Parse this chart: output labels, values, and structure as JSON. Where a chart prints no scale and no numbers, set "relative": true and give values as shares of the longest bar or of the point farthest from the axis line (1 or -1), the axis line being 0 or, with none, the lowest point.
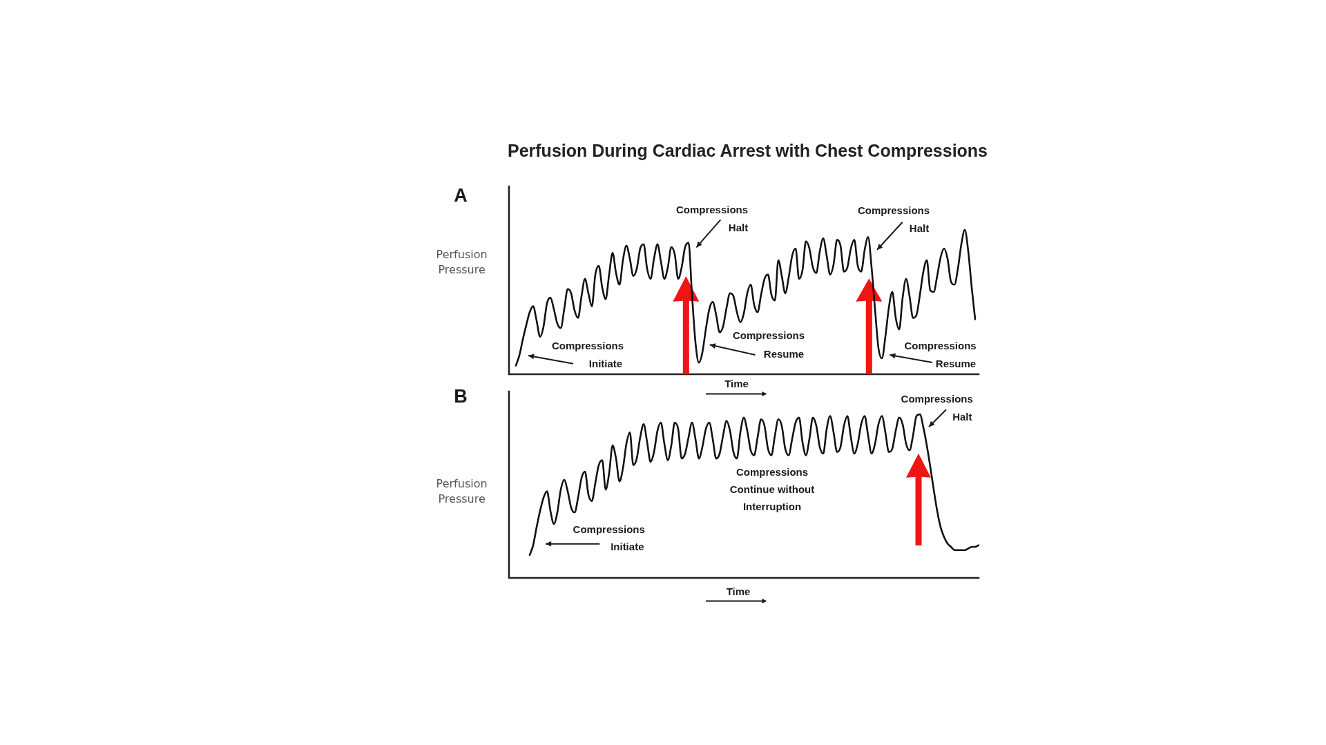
{
  "chart_data": [
    {
      "type": "line",
      "title": "Perfusion During Cardiac Arrest with Chest Compressions",
      "subtitle": "A",
      "ylabel": "Perfusion Pressure",
      "xlabel": "Time",
      "relative": true,
      "tick_labels": false,
      "color": "#111111",
      "categories": [
        null,
        null,
        null,
        null,
        null,
        null,
        null,
        null,
        null,
        null,
        null,
        null,
        null,
        null,
        null,
        null,
        null,
        null,
        null,
        null,
        null,
        null,
        null,
        null,
        null,
        null,
        null,
        null,
        null,
        null,
        null,
        null,
        null,
        null,
        null,
        null,
        null,
        null,
        null,
        null,
        null,
        null,
        null,
        null,
        null,
        null,
        null,
        null,
        null,
        null,
        null,
        null,
        null,
        null,
        null,
        null,
        null,
        null,
        null,
        null,
        null,
        null,
        null,
        null,
        null,
        null,
        null,
        null,
        null,
        null,
        null,
        null,
        null,
        null,
        null,
        null,
        null,
        null,
        null,
        null,
        null,
        null,
        null,
        null,
        null,
        null,
        null,
        null,
        null,
        null,
        null,
        null,
        null,
        null,
        null,
        null,
        null,
        null,
        null,
        null,
        null,
        null,
        null,
        null,
        null,
        null,
        null,
        null,
        null,
        null,
        null,
        null,
        null,
        null,
        null,
        null,
        null,
        null,
        null,
        null,
        null,
        null,
        null,
        null,
        null,
        null,
        null,
        null,
        null,
        null,
        null,
        null,
        null,
        null,
        null,
        null,
        null
      ],
      "values": [
        null,
        null,
        0.06,
        0.13,
        0.24,
        0.34,
        0.43,
        0.47,
        0.37,
        0.26,
        0.33,
        0.49,
        0.53,
        0.45,
        0.35,
        0.32,
        0.45,
        0.59,
        0.56,
        0.44,
        0.39,
        0.54,
        0.66,
        0.56,
        0.47,
        0.69,
        0.75,
        0.6,
        0.52,
        0.69,
        0.84,
        0.7,
        0.62,
        0.79,
        0.89,
        0.8,
        0.68,
        0.73,
        0.87,
        0.9,
        0.73,
        0.66,
        0.8,
        0.9,
        0.78,
        0.66,
        0.74,
        0.88,
        0.83,
        0.66,
        0.74,
        0.88,
        0.91,
        0.55,
        0.22,
        0.08,
        0.15,
        0.31,
        0.45,
        0.5,
        0.41,
        0.29,
        0.33,
        0.46,
        0.56,
        0.54,
        0.43,
        0.36,
        0.42,
        0.56,
        0.62,
        0.48,
        0.43,
        0.55,
        0.66,
        0.69,
        0.55,
        0.51,
        0.79,
        0.68,
        0.56,
        0.67,
        0.82,
        0.87,
        0.66,
        0.72,
        0.92,
        0.87,
        0.74,
        0.7,
        0.85,
        0.94,
        0.82,
        0.69,
        0.76,
        0.93,
        0.89,
        0.71,
        0.74,
        0.87,
        0.93,
        0.75,
        0.71,
        0.86,
        0.95,
        0.74,
        0.45,
        0.18,
        0.11,
        0.26,
        0.46,
        0.57,
        0.39,
        0.31,
        0.53,
        0.66,
        0.54,
        0.39,
        0.41,
        0.55,
        0.71,
        0.79,
        0.58,
        0.57,
        0.68,
        0.81,
        0.87,
        0.8,
        0.64,
        0.62,
        0.73,
        0.9,
        1,
        0.85,
        0.6,
        0.38,
        null
      ],
      "annotations": [
        "Compressions Initiate",
        "Compressions Halt",
        "Compressions Resume",
        "Compressions Halt",
        "Compressions Resume"
      ]
    },
    {
      "type": "line",
      "subtitle": "B",
      "ylabel": "Perfusion Pressure",
      "xlabel": "Time",
      "relative": true,
      "tick_labels": false,
      "color": "#111111",
      "categories": [
        null,
        null,
        null,
        null,
        null,
        null,
        null,
        null,
        null,
        null,
        null,
        null,
        null,
        null,
        null,
        null,
        null,
        null,
        null,
        null,
        null,
        null,
        null,
        null,
        null,
        null,
        null,
        null,
        null,
        null,
        null,
        null,
        null,
        null,
        null,
        null,
        null,
        null,
        null,
        null,
        null,
        null,
        null,
        null,
        null,
        null,
        null,
        null,
        null,
        null,
        null,
        null,
        null,
        null,
        null,
        null,
        null,
        null,
        null,
        null,
        null,
        null,
        null,
        null,
        null,
        null,
        null,
        null,
        null,
        null,
        null,
        null,
        null,
        null,
        null,
        null,
        null,
        null,
        null,
        null,
        null,
        null,
        null,
        null,
        null,
        null,
        null,
        null,
        null,
        null,
        null,
        null,
        null,
        null,
        null,
        null,
        null,
        null,
        null,
        null,
        null,
        null,
        null,
        null,
        null,
        null,
        null,
        null,
        null,
        null,
        null,
        null,
        null,
        null,
        null,
        null,
        null,
        null,
        null,
        null,
        null,
        null,
        null,
        null,
        null,
        null,
        null,
        null,
        null,
        null,
        null,
        null,
        null,
        null,
        null,
        null,
        null
      ],
      "values": [
        null,
        null,
        null,
        null,
        null,
        null,
        0.14,
        0.2,
        0.31,
        0.41,
        0.49,
        0.53,
        0.41,
        0.33,
        0.4,
        0.54,
        0.6,
        0.53,
        0.43,
        0.4,
        0.49,
        0.61,
        0.65,
        0.51,
        0.47,
        0.58,
        0.69,
        0.72,
        0.54,
        0.64,
        0.81,
        0.73,
        0.59,
        0.67,
        0.82,
        0.89,
        0.69,
        0.73,
        0.86,
        0.94,
        0.83,
        0.71,
        0.77,
        0.9,
        0.95,
        0.82,
        0.72,
        0.81,
        0.95,
        0.91,
        0.73,
        0.76,
        0.86,
        0.95,
        0.85,
        0.73,
        0.8,
        0.91,
        0.95,
        0.85,
        0.73,
        0.76,
        0.87,
        0.96,
        0.9,
        0.77,
        0.73,
        0.89,
        0.98,
        0.9,
        0.78,
        0.75,
        0.86,
        0.97,
        0.93,
        0.79,
        0.75,
        0.87,
        0.97,
        0.93,
        0.79,
        0.75,
        0.85,
        0.95,
        0.98,
        0.83,
        0.75,
        0.85,
        0.98,
        0.93,
        0.8,
        0.76,
        0.91,
        0.99,
        0.89,
        0.77,
        0.8,
        0.93,
        0.99,
        0.86,
        0.76,
        0.82,
        0.94,
        0.99,
        0.87,
        0.76,
        0.82,
        0.94,
        0.99,
        0.89,
        0.77,
        0.79,
        0.9,
        0.98,
        0.94,
        0.82,
        0.78,
        0.87,
        0.99,
        1,
        0.92,
        0.81,
        0.68,
        0.54,
        0.41,
        0.31,
        0.25,
        0.21,
        0.19,
        0.17,
        0.17,
        0.17,
        0.17,
        0.18,
        0.19,
        0.19,
        0.2
      ],
      "annotations": [
        "Compressions Initiate",
        "Compressions Continue without Interruption",
        "Compressions Halt"
      ]
    }
  ]
}
